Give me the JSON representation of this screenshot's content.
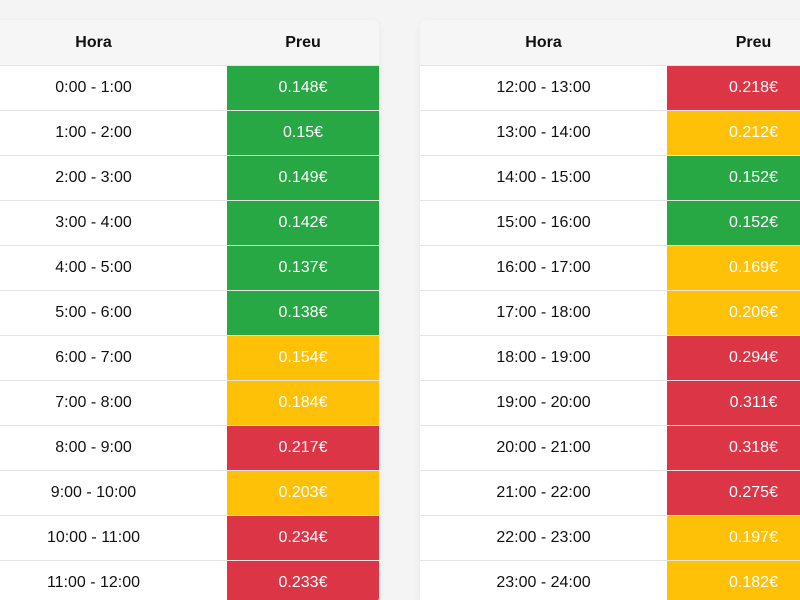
{
  "headers": {
    "hour": "Hora",
    "price": "Preu"
  },
  "colors": {
    "low": "#28a745",
    "mid": "#ffc107",
    "high": "#dc3545"
  },
  "left_rows": [
    {
      "hour": "0:00 - 1:00",
      "price": "0.148€",
      "level": "low"
    },
    {
      "hour": "1:00 - 2:00",
      "price": "0.15€",
      "level": "low"
    },
    {
      "hour": "2:00 - 3:00",
      "price": "0.149€",
      "level": "low"
    },
    {
      "hour": "3:00 - 4:00",
      "price": "0.142€",
      "level": "low"
    },
    {
      "hour": "4:00 - 5:00",
      "price": "0.137€",
      "level": "low"
    },
    {
      "hour": "5:00 - 6:00",
      "price": "0.138€",
      "level": "low"
    },
    {
      "hour": "6:00 - 7:00",
      "price": "0.154€",
      "level": "mid"
    },
    {
      "hour": "7:00 - 8:00",
      "price": "0.184€",
      "level": "mid"
    },
    {
      "hour": "8:00 - 9:00",
      "price": "0.217€",
      "level": "high"
    },
    {
      "hour": "9:00 - 10:00",
      "price": "0.203€",
      "level": "mid"
    },
    {
      "hour": "10:00 - 11:00",
      "price": "0.234€",
      "level": "high"
    },
    {
      "hour": "11:00 - 12:00",
      "price": "0.233€",
      "level": "high"
    }
  ],
  "right_rows": [
    {
      "hour": "12:00 - 13:00",
      "price": "0.218€",
      "level": "high"
    },
    {
      "hour": "13:00 - 14:00",
      "price": "0.212€",
      "level": "mid"
    },
    {
      "hour": "14:00 - 15:00",
      "price": "0.152€",
      "level": "low"
    },
    {
      "hour": "15:00 - 16:00",
      "price": "0.152€",
      "level": "low"
    },
    {
      "hour": "16:00 - 17:00",
      "price": "0.169€",
      "level": "mid"
    },
    {
      "hour": "17:00 - 18:00",
      "price": "0.206€",
      "level": "mid"
    },
    {
      "hour": "18:00 - 19:00",
      "price": "0.294€",
      "level": "high"
    },
    {
      "hour": "19:00 - 20:00",
      "price": "0.311€",
      "level": "high"
    },
    {
      "hour": "20:00 - 21:00",
      "price": "0.318€",
      "level": "high"
    },
    {
      "hour": "21:00 - 22:00",
      "price": "0.275€",
      "level": "high"
    },
    {
      "hour": "22:00 - 23:00",
      "price": "0.197€",
      "level": "mid"
    },
    {
      "hour": "23:00 - 24:00",
      "price": "0.182€",
      "level": "mid"
    }
  ]
}
